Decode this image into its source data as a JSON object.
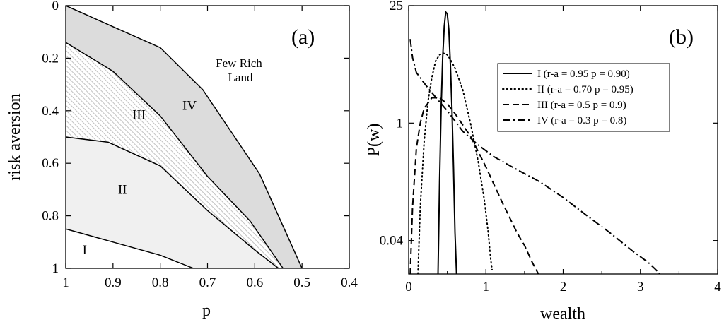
{
  "chart_data": [
    {
      "type": "area",
      "panel_label": "(a)",
      "xlabel": "p",
      "ylabel": "risk aversion",
      "xlim": [
        1,
        0.4
      ],
      "ylim": [
        0,
        1
      ],
      "x_inverted": true,
      "y_inverted": true,
      "xticks": [
        "1",
        "0.9",
        "0.8",
        "0.7",
        "0.6",
        "0.5",
        "0.4"
      ],
      "yticks": [
        "0",
        "0.2",
        "0.4",
        "0.6",
        "0.8",
        "1"
      ],
      "annotation": [
        "Few Rich",
        "Land"
      ],
      "region_labels": [
        {
          "label": "I",
          "p": 0.96,
          "ra": 0.93
        },
        {
          "label": "II",
          "p": 0.88,
          "ra": 0.7
        },
        {
          "label": "III",
          "p": 0.8,
          "ra": 0.41
        },
        {
          "label": "IV",
          "p": 0.75,
          "ra": 0.38
        }
      ],
      "boundaries": [
        {
          "name": "I/II",
          "points": [
            [
              1.0,
              0.85
            ],
            [
              0.9,
              0.9
            ],
            [
              0.8,
              0.95
            ],
            [
              0.73,
              1.0
            ]
          ]
        },
        {
          "name": "II/III",
          "points": [
            [
              1.0,
              0.5
            ],
            [
              0.91,
              0.52
            ],
            [
              0.8,
              0.61
            ],
            [
              0.7,
              0.78
            ],
            [
              0.6,
              0.93
            ],
            [
              0.55,
              1.0
            ]
          ]
        },
        {
          "name": "III/IV",
          "points": [
            [
              1.0,
              0.14
            ],
            [
              0.9,
              0.25
            ],
            [
              0.8,
              0.42
            ],
            [
              0.7,
              0.65
            ],
            [
              0.61,
              0.82
            ],
            [
              0.54,
              1.0
            ]
          ]
        },
        {
          "name": "IV/Few Rich Land",
          "points": [
            [
              1.0,
              0.0
            ],
            [
              0.9,
              0.08
            ],
            [
              0.8,
              0.16
            ],
            [
              0.71,
              0.32
            ],
            [
              0.59,
              0.64
            ],
            [
              0.5,
              1.0
            ]
          ]
        }
      ],
      "fills": {
        "I": "#ffffff",
        "II": "#f0f0f0",
        "III": "hatch",
        "IV": "#dcdcdc",
        "Few Rich Land": "#ffffff"
      }
    },
    {
      "type": "line",
      "panel_label": "(b)",
      "xlabel": "wealth",
      "ylabel": "P(w)",
      "xlim": [
        0,
        4
      ],
      "ylim": [
        0.016,
        25
      ],
      "yscale": "log",
      "xticks": [
        "0",
        "1",
        "2",
        "3",
        "4"
      ],
      "yticks": [
        "0.04",
        "1",
        "25"
      ],
      "legend_position": "top-right",
      "series": [
        {
          "name": "I  (r-a = 0.95  p = 0.90)",
          "dash": "solid",
          "x": [
            0.38,
            0.4,
            0.42,
            0.44,
            0.46,
            0.48,
            0.5,
            0.52,
            0.54,
            0.56,
            0.58,
            0.6,
            0.62
          ],
          "y": [
            0.016,
            0.2,
            1.5,
            6,
            14,
            21,
            20,
            13,
            5,
            1.5,
            0.3,
            0.05,
            0.016
          ]
        },
        {
          "name": "II (r-a = 0.70  p = 0.95)",
          "dash": "dotted",
          "x": [
            0.12,
            0.15,
            0.2,
            0.25,
            0.3,
            0.35,
            0.4,
            0.45,
            0.5,
            0.55,
            0.6,
            0.7,
            0.8,
            0.9,
            0.98,
            1.03,
            1.06,
            1.08
          ],
          "y": [
            0.016,
            0.1,
            0.6,
            1.8,
            3.5,
            5.5,
            6.5,
            6.8,
            6.5,
            5.5,
            4.5,
            2.5,
            1.0,
            0.35,
            0.12,
            0.05,
            0.025,
            0.018
          ]
        },
        {
          "name": "III (r-a = 0.5  p = 0.9)",
          "dash": "dashed",
          "x": [
            0.02,
            0.05,
            0.1,
            0.15,
            0.2,
            0.3,
            0.4,
            0.5,
            0.6,
            0.8,
            1.0,
            1.2,
            1.4,
            1.5,
            1.6,
            1.65,
            1.68
          ],
          "y": [
            0.016,
            0.1,
            0.5,
            1.0,
            1.5,
            2.0,
            2.0,
            1.7,
            1.3,
            0.7,
            0.3,
            0.12,
            0.05,
            0.035,
            0.022,
            0.018,
            0.016
          ]
        },
        {
          "name": "IV (r-a = 0.3  p = 0.8)",
          "dash": "dashdot",
          "x": [
            0.02,
            0.05,
            0.1,
            0.2,
            0.3,
            0.5,
            0.7,
            0.9,
            1.1,
            1.4,
            1.7,
            2.0,
            2.3,
            2.6,
            2.9,
            3.1,
            3.2,
            3.25
          ],
          "y": [
            10,
            6,
            4,
            3,
            2.3,
            1.4,
            0.8,
            0.55,
            0.4,
            0.28,
            0.2,
            0.13,
            0.08,
            0.05,
            0.03,
            0.022,
            0.018,
            0.016
          ]
        }
      ]
    }
  ]
}
